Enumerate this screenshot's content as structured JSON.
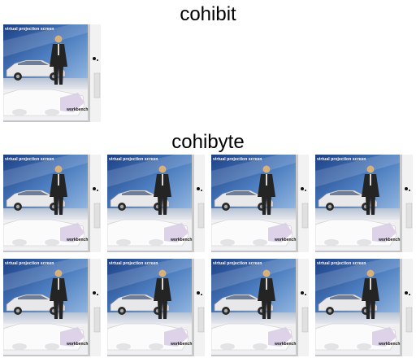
{
  "headings": {
    "top": "cohibit",
    "bottom": "cohibyte"
  },
  "thumbnail": {
    "label_top": "virtual projection screen",
    "label_bottom": "workbench"
  }
}
